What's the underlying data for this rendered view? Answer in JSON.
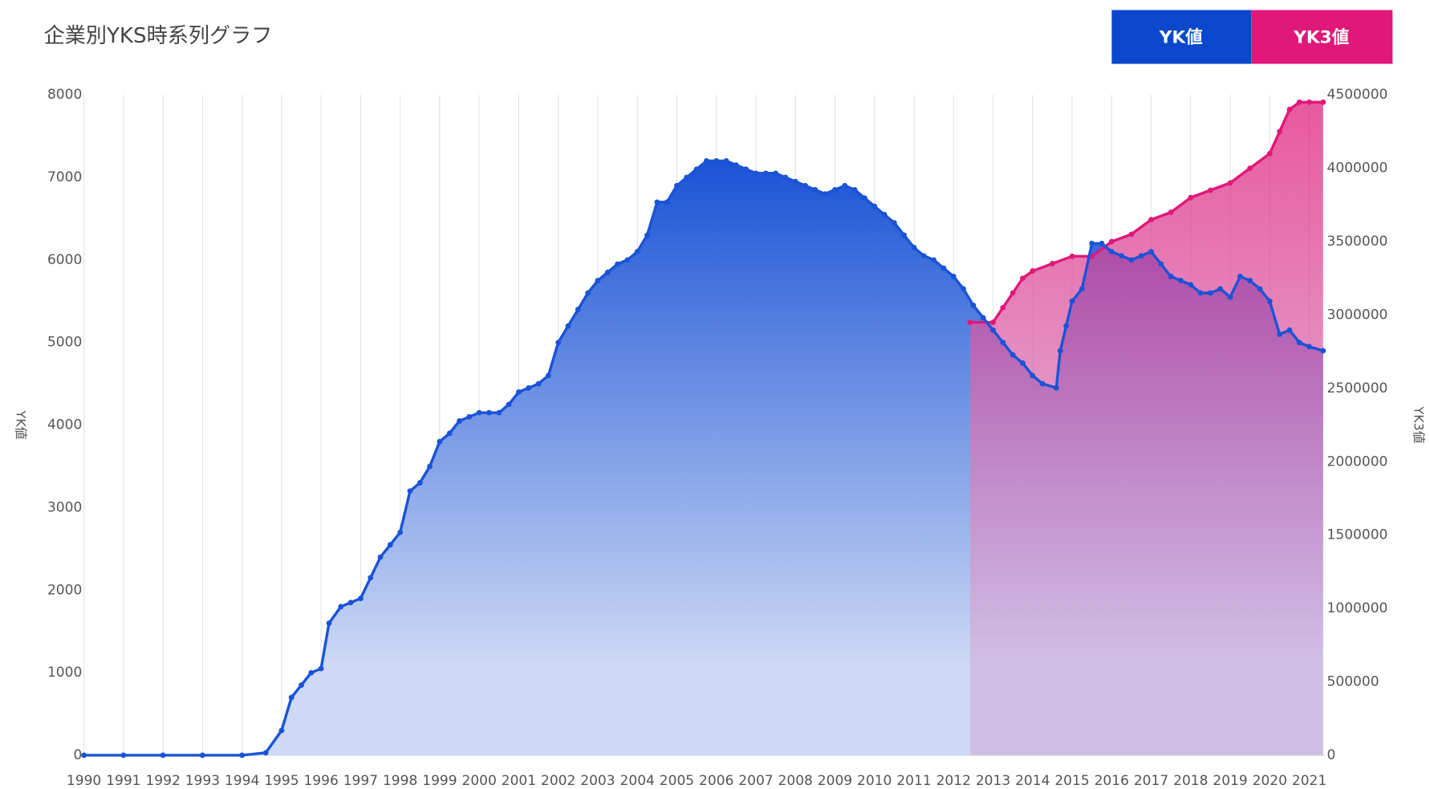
{
  "chart_data": {
    "type": "line",
    "title": "企業別YKS時系列グラフ",
    "y_label": "YK値",
    "y2_label": "YK3値",
    "xlim": [
      1990,
      2021.4
    ],
    "xticks": [
      1990,
      1991,
      1992,
      1993,
      1994,
      1995,
      1996,
      1997,
      1998,
      1999,
      2000,
      2001,
      2002,
      2003,
      2004,
      2005,
      2006,
      2007,
      2008,
      2009,
      2010,
      2011,
      2012,
      2013,
      2014,
      2015,
      2016,
      2017,
      2018,
      2019,
      2020,
      2021
    ],
    "ylim": [
      0,
      8000
    ],
    "yticks": [
      0,
      1000,
      2000,
      3000,
      4000,
      5000,
      6000,
      7000,
      8000
    ],
    "y2lim": [
      0,
      4500000
    ],
    "y2ticks": [
      0,
      500000,
      1000000,
      1500000,
      2000000,
      2500000,
      3000000,
      3500000,
      4000000,
      4500000
    ],
    "grid": true,
    "series": [
      {
        "name": "YK値",
        "color": "#1a53d6",
        "x": [
          1990,
          1991,
          1992,
          1993,
          1994,
          1994.6,
          1995,
          1995.25,
          1995.5,
          1995.75,
          1996,
          1996.2,
          1996.5,
          1996.75,
          1997,
          1997.25,
          1997.5,
          1997.75,
          1998,
          1998.25,
          1998.5,
          1998.75,
          1999,
          1999.25,
          1999.5,
          1999.75,
          2000,
          2000.25,
          2000.5,
          2000.75,
          2001,
          2001.25,
          2001.5,
          2001.75,
          2002,
          2002.25,
          2002.5,
          2002.75,
          2003,
          2003.25,
          2003.5,
          2003.75,
          2004,
          2004.25,
          2004.5,
          2004.75,
          2005,
          2005.25,
          2005.5,
          2005.75,
          2006,
          2006.25,
          2006.5,
          2006.75,
          2007,
          2007.25,
          2007.5,
          2007.75,
          2008,
          2008.25,
          2008.5,
          2008.75,
          2009,
          2009.25,
          2009.5,
          2009.75,
          2010,
          2010.25,
          2010.5,
          2010.75,
          2011,
          2011.25,
          2011.5,
          2011.75,
          2012,
          2012.25,
          2012.5,
          2012.75,
          2013,
          2013.25,
          2013.5,
          2013.75,
          2014,
          2014.25,
          2014.6,
          2014.7,
          2014.85,
          2015,
          2015.25,
          2015.5,
          2015.75,
          2016,
          2016.25,
          2016.5,
          2016.75,
          2017,
          2017.25,
          2017.5,
          2017.75,
          2018,
          2018.25,
          2018.5,
          2018.75,
          2019,
          2019.25,
          2019.5,
          2019.75,
          2020,
          2020.25,
          2020.5,
          2020.75,
          2021,
          2021.35
        ],
        "values": [
          0,
          0,
          0,
          0,
          0,
          30,
          300,
          700,
          850,
          1000,
          1050,
          1600,
          1800,
          1850,
          1900,
          2150,
          2400,
          2550,
          2700,
          3200,
          3300,
          3500,
          3800,
          3900,
          4050,
          4100,
          4150,
          4150,
          4150,
          4250,
          4400,
          4450,
          4500,
          4600,
          5000,
          5200,
          5400,
          5600,
          5750,
          5850,
          5950,
          6000,
          6100,
          6300,
          6700,
          6700,
          6900,
          7000,
          7100,
          7200,
          7200,
          7200,
          7150,
          7100,
          7050,
          7050,
          7050,
          7000,
          6950,
          6900,
          6850,
          6800,
          6850,
          6900,
          6850,
          6750,
          6650,
          6550,
          6450,
          6300,
          6150,
          6050,
          6000,
          5900,
          5800,
          5650,
          5450,
          5300,
          5150,
          5000,
          4850,
          4750,
          4600,
          4500,
          4450,
          4900,
          5200,
          5500,
          5650,
          6200,
          6200,
          6100,
          6050,
          6000,
          6050,
          6100,
          5950,
          5800,
          5750,
          5700,
          5600,
          5600,
          5650,
          5550,
          5800,
          5750,
          5650,
          5500,
          5100,
          5150,
          5000,
          4950,
          4900
        ]
      },
      {
        "name": "YK3値",
        "color": "#e0187a",
        "axis": "y2",
        "x": [
          2012.42,
          2013,
          2013.25,
          2013.5,
          2013.75,
          2014,
          2014.5,
          2015,
          2015.5,
          2016,
          2016.5,
          2017,
          2017.5,
          2018,
          2018.5,
          2019,
          2019.5,
          2020,
          2020.25,
          2020.5,
          2020.75,
          2021,
          2021.35
        ],
        "values": [
          2950000,
          2950000,
          3050000,
          3150000,
          3250000,
          3300000,
          3350000,
          3400000,
          3400000,
          3500000,
          3550000,
          3650000,
          3700000,
          3800000,
          3850000,
          3900000,
          4000000,
          4100000,
          4250000,
          4400000,
          4450000,
          4450000,
          4450000
        ]
      }
    ]
  }
}
